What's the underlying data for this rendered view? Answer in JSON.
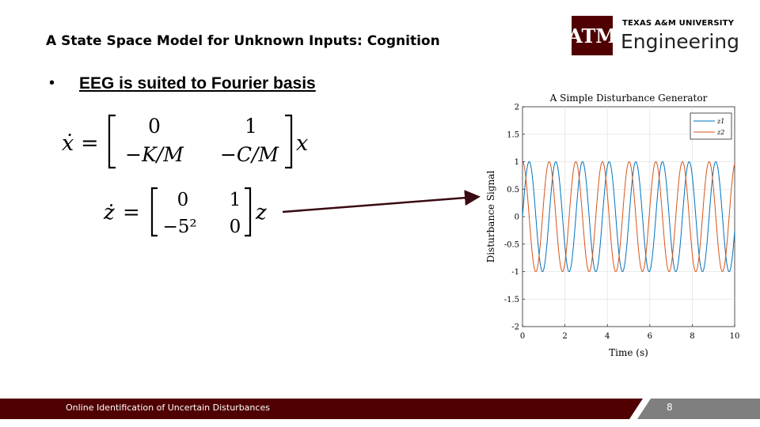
{
  "slide": {
    "title": "A State Space Model for Unknown Inputs: Cognition",
    "bullet": "EEG is suited to Fourier basis"
  },
  "logo": {
    "university": "TEXAS A&M UNIVERSITY",
    "department": "Engineering",
    "mark": "ATM",
    "brand_color": "#500000"
  },
  "equation1": {
    "lhs": "ẋ",
    "equals": "=",
    "matrix": [
      [
        "0",
        "1"
      ],
      [
        "−K/M",
        "−C/M"
      ]
    ],
    "rhs": "x"
  },
  "equation2": {
    "lhs": "ż",
    "equals": "=",
    "matrix": [
      [
        "0",
        "1"
      ],
      [
        "−5²",
        "0"
      ]
    ],
    "rhs": "z"
  },
  "arrow_color": "#3a0a12",
  "chart_data": {
    "type": "line",
    "title": "A Simple Disturbance Generator",
    "xlabel": "Time (s)",
    "ylabel": "Disturbance Signal",
    "xlim": [
      0,
      10
    ],
    "ylim": [
      -2,
      2
    ],
    "xticks": [
      "0",
      "2",
      "4",
      "6",
      "8",
      "10"
    ],
    "yticks": [
      "2",
      "1.5",
      "1",
      "0.5",
      "0",
      "-0.5",
      "-1",
      "-1.5",
      "-2"
    ],
    "grid": true,
    "legend_position": "top-right",
    "series": [
      {
        "name": "z1",
        "color": "#0072bd",
        "function": "sin(5t)",
        "amplitude": 1,
        "frequency_rad_s": 5
      },
      {
        "name": "z2",
        "color": "#d95319",
        "function": "cos(5t)",
        "amplitude": 1,
        "frequency_rad_s": 5
      }
    ]
  },
  "footer": {
    "text": "Online Identification of Uncertain Disturbances",
    "page": "8",
    "bar_color": "#500000",
    "page_bg_color": "#7f7f7f"
  }
}
